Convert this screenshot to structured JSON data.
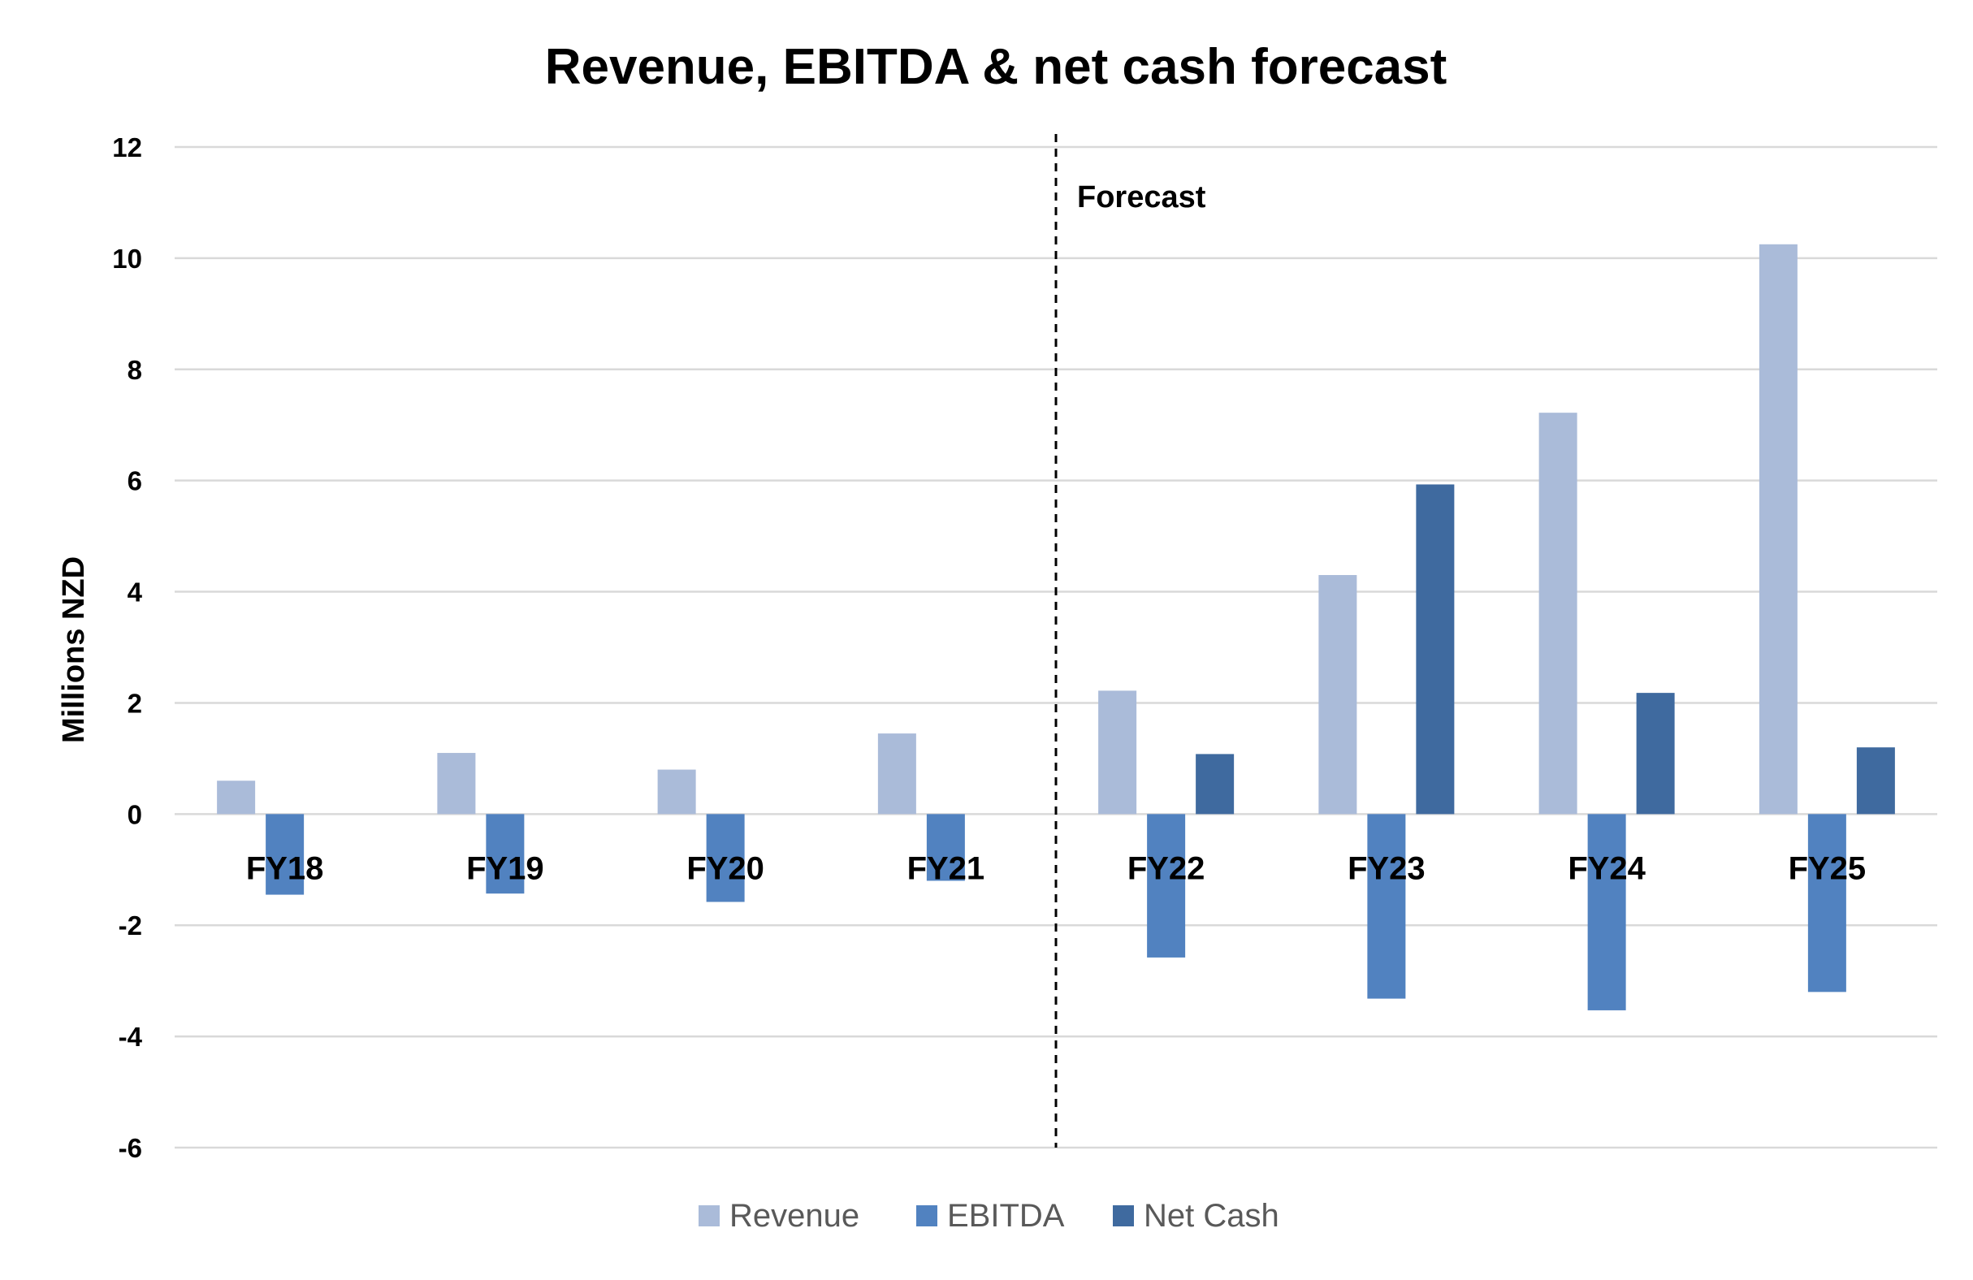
{
  "chart_data": {
    "type": "bar",
    "title": "Revenue, EBITDA & net cash forecast",
    "xlabel": "",
    "ylabel": "Millions NZD",
    "ylim": [
      -6,
      12
    ],
    "yticks": [
      12,
      10,
      8,
      6,
      4,
      2,
      0,
      -2,
      -4,
      -6
    ],
    "categories": [
      "FY18",
      "FY19",
      "FY20",
      "FY21",
      "FY22",
      "FY23",
      "FY24",
      "FY25"
    ],
    "series": [
      {
        "name": "Revenue",
        "color": "#aabbd9",
        "values": [
          0.6,
          1.1,
          0.8,
          1.45,
          2.22,
          4.3,
          7.22,
          10.25
        ]
      },
      {
        "name": "EBITDA",
        "color": "#5182c0",
        "values": [
          -1.45,
          -1.43,
          -1.58,
          -1.2,
          -2.58,
          -3.32,
          -3.53,
          -3.2
        ]
      },
      {
        "name": "Net Cash",
        "color": "#3f6a9f",
        "values": [
          null,
          null,
          null,
          null,
          1.08,
          5.93,
          2.18,
          1.2
        ]
      }
    ],
    "annotation": {
      "text": "Forecast",
      "between": [
        "FY21",
        "FY22"
      ]
    },
    "grid": true,
    "legend_position": "bottom"
  }
}
